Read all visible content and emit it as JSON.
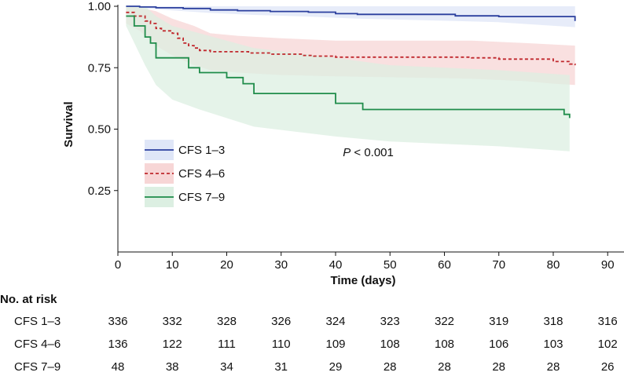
{
  "chart_data": {
    "type": "line",
    "subtype": "kaplan-meier",
    "title": "",
    "xlabel": "Time (days)",
    "ylabel": "Survival",
    "xlim": [
      0,
      93
    ],
    "ylim": [
      0,
      1.0
    ],
    "x_ticks": [
      0,
      10,
      20,
      30,
      40,
      50,
      60,
      70,
      80,
      90
    ],
    "y_ticks": [
      0.25,
      0.5,
      0.75,
      1.0
    ],
    "y_tick_labels": [
      "0.25",
      "0.50",
      "0.75",
      "1.00"
    ],
    "annotation": {
      "italic": "P",
      "text": " < 0.001",
      "x": 46,
      "y": 0.39
    },
    "legend_position": "center-left",
    "series": [
      {
        "name": "CFS 1–3",
        "color": "#2b3f9e",
        "band_color": "#dfe6f7",
        "dash": "solid",
        "steps": [
          [
            1.5,
            1.0
          ],
          [
            4,
            0.997
          ],
          [
            7,
            0.994
          ],
          [
            12,
            0.991
          ],
          [
            17,
            0.985
          ],
          [
            22,
            0.982
          ],
          [
            28,
            0.979
          ],
          [
            35,
            0.976
          ],
          [
            40,
            0.97
          ],
          [
            44,
            0.967
          ],
          [
            62,
            0.961
          ],
          [
            70,
            0.958
          ],
          [
            84,
            0.952
          ],
          [
            84,
            0.94
          ]
        ],
        "upper": [
          [
            1.5,
            1.0
          ],
          [
            84,
            1.0
          ]
        ],
        "lower": [
          [
            1.5,
            1.0
          ],
          [
            4,
            0.993
          ],
          [
            10,
            0.983
          ],
          [
            17,
            0.973
          ],
          [
            25,
            0.965
          ],
          [
            35,
            0.958
          ],
          [
            44,
            0.95
          ],
          [
            62,
            0.94
          ],
          [
            70,
            0.935
          ],
          [
            84,
            0.915
          ]
        ]
      },
      {
        "name": "CFS 4–6",
        "color": "#c0282d",
        "band_color": "#f7d6d6",
        "dash": "dashed",
        "steps": [
          [
            1.5,
            0.975
          ],
          [
            3,
            0.96
          ],
          [
            5,
            0.94
          ],
          [
            6,
            0.93
          ],
          [
            7,
            0.91
          ],
          [
            8,
            0.9
          ],
          [
            10,
            0.89
          ],
          [
            11,
            0.87
          ],
          [
            12,
            0.85
          ],
          [
            13,
            0.84
          ],
          [
            14,
            0.83
          ],
          [
            15,
            0.82
          ],
          [
            17,
            0.815
          ],
          [
            24,
            0.81
          ],
          [
            28,
            0.805
          ],
          [
            34,
            0.8
          ],
          [
            36,
            0.797
          ],
          [
            40,
            0.793
          ],
          [
            65,
            0.79
          ],
          [
            70,
            0.785
          ],
          [
            80,
            0.775
          ],
          [
            83,
            0.765
          ],
          [
            84,
            0.76
          ]
        ],
        "upper": [
          [
            1.5,
            1.0
          ],
          [
            4,
            0.995
          ],
          [
            7,
            0.98
          ],
          [
            10,
            0.95
          ],
          [
            14,
            0.92
          ],
          [
            17,
            0.89
          ],
          [
            22,
            0.88
          ],
          [
            30,
            0.87
          ],
          [
            40,
            0.86
          ],
          [
            65,
            0.86
          ],
          [
            75,
            0.85
          ],
          [
            84,
            0.84
          ]
        ],
        "lower": [
          [
            1.5,
            0.93
          ],
          [
            4,
            0.9
          ],
          [
            7,
            0.84
          ],
          [
            10,
            0.8
          ],
          [
            14,
            0.76
          ],
          [
            17,
            0.74
          ],
          [
            22,
            0.73
          ],
          [
            30,
            0.72
          ],
          [
            40,
            0.715
          ],
          [
            65,
            0.705
          ],
          [
            75,
            0.695
          ],
          [
            80,
            0.685
          ],
          [
            84,
            0.68
          ]
        ]
      },
      {
        "name": "CFS 7–9",
        "color": "#1f8c4a",
        "band_color": "#dcefe2",
        "dash": "solid",
        "steps": [
          [
            1.5,
            0.96
          ],
          [
            3,
            0.92
          ],
          [
            5,
            0.875
          ],
          [
            6,
            0.85
          ],
          [
            7,
            0.79
          ],
          [
            13,
            0.75
          ],
          [
            15,
            0.73
          ],
          [
            20,
            0.71
          ],
          [
            23,
            0.685
          ],
          [
            25,
            0.645
          ],
          [
            40,
            0.605
          ],
          [
            45,
            0.58
          ],
          [
            82,
            0.56
          ],
          [
            83,
            0.545
          ]
        ],
        "upper": [
          [
            1.5,
            1.0
          ],
          [
            5,
            1.0
          ],
          [
            7,
            0.96
          ],
          [
            10,
            0.92
          ],
          [
            15,
            0.89
          ],
          [
            25,
            0.83
          ],
          [
            40,
            0.79
          ],
          [
            50,
            0.76
          ],
          [
            70,
            0.74
          ],
          [
            83,
            0.72
          ]
        ],
        "lower": [
          [
            1.5,
            0.92
          ],
          [
            5,
            0.76
          ],
          [
            7,
            0.68
          ],
          [
            10,
            0.62
          ],
          [
            15,
            0.58
          ],
          [
            25,
            0.51
          ],
          [
            40,
            0.47
          ],
          [
            50,
            0.45
          ],
          [
            70,
            0.43
          ],
          [
            83,
            0.41
          ]
        ]
      }
    ]
  },
  "risk_table": {
    "title": "No. at risk",
    "times": [
      0,
      10,
      20,
      30,
      40,
      50,
      60,
      70,
      80,
      90
    ],
    "rows": [
      {
        "group": "CFS 1–3",
        "counts": [
          "336",
          "332",
          "328",
          "326",
          "324",
          "323",
          "322",
          "319",
          "318",
          "316"
        ]
      },
      {
        "group": "CFS 4–6",
        "counts": [
          "136",
          "122",
          "111",
          "110",
          "109",
          "108",
          "108",
          "106",
          "103",
          "102"
        ]
      },
      {
        "group": "CFS 7–9",
        "counts": [
          "48",
          "38",
          "34",
          "31",
          "29",
          "28",
          "28",
          "28",
          "28",
          "26"
        ]
      }
    ]
  }
}
